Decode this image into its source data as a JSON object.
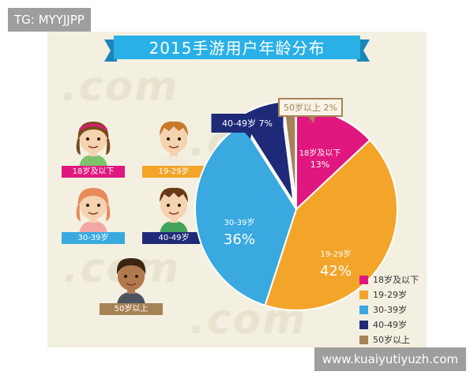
{
  "watermarks": {
    "top_left": "TG: MYYJJPP",
    "bottom_right": "www.kuaiyutiyuzh.com"
  },
  "title": "2015手游用户年龄分布",
  "avatars": [
    {
      "label": "18岁及以下",
      "color": "#e0177f"
    },
    {
      "label": "19-29岁",
      "color": "#f3a52a"
    },
    {
      "label": "30-39岁",
      "color": "#39a9df"
    },
    {
      "label": "40-49岁",
      "color": "#1e2a78"
    },
    {
      "label": "50岁以上",
      "color": "#a68257"
    }
  ],
  "chart_data": {
    "type": "pie",
    "title": "2015手游用户年龄分布",
    "slices": [
      {
        "label": "18岁及以下",
        "value": 13,
        "display": "13%",
        "color": "#e0177f"
      },
      {
        "label": "19-29岁",
        "value": 42,
        "display": "42%",
        "color": "#f3a52a"
      },
      {
        "label": "30-39岁",
        "value": 36,
        "display": "36%",
        "color": "#39a9df"
      },
      {
        "label": "40-49岁",
        "value": 7,
        "display": "7%",
        "color": "#1e2a78"
      },
      {
        "label": "50岁以上",
        "value": 2,
        "display": "2%",
        "color": "#a68257"
      }
    ],
    "legend": [
      {
        "label": "18岁及以下",
        "color": "#e0177f"
      },
      {
        "label": "19-29岁",
        "color": "#f3a52a"
      },
      {
        "label": "30-39岁",
        "color": "#39a9df"
      },
      {
        "label": "40-49岁",
        "color": "#1e2a78"
      },
      {
        "label": "50岁以上",
        "color": "#a68257"
      }
    ],
    "legend_position": "bottom-right"
  },
  "colors": {
    "background": "#f3f0e1",
    "banner": "#29b0e6",
    "banner_dark": "#1a86b8"
  }
}
